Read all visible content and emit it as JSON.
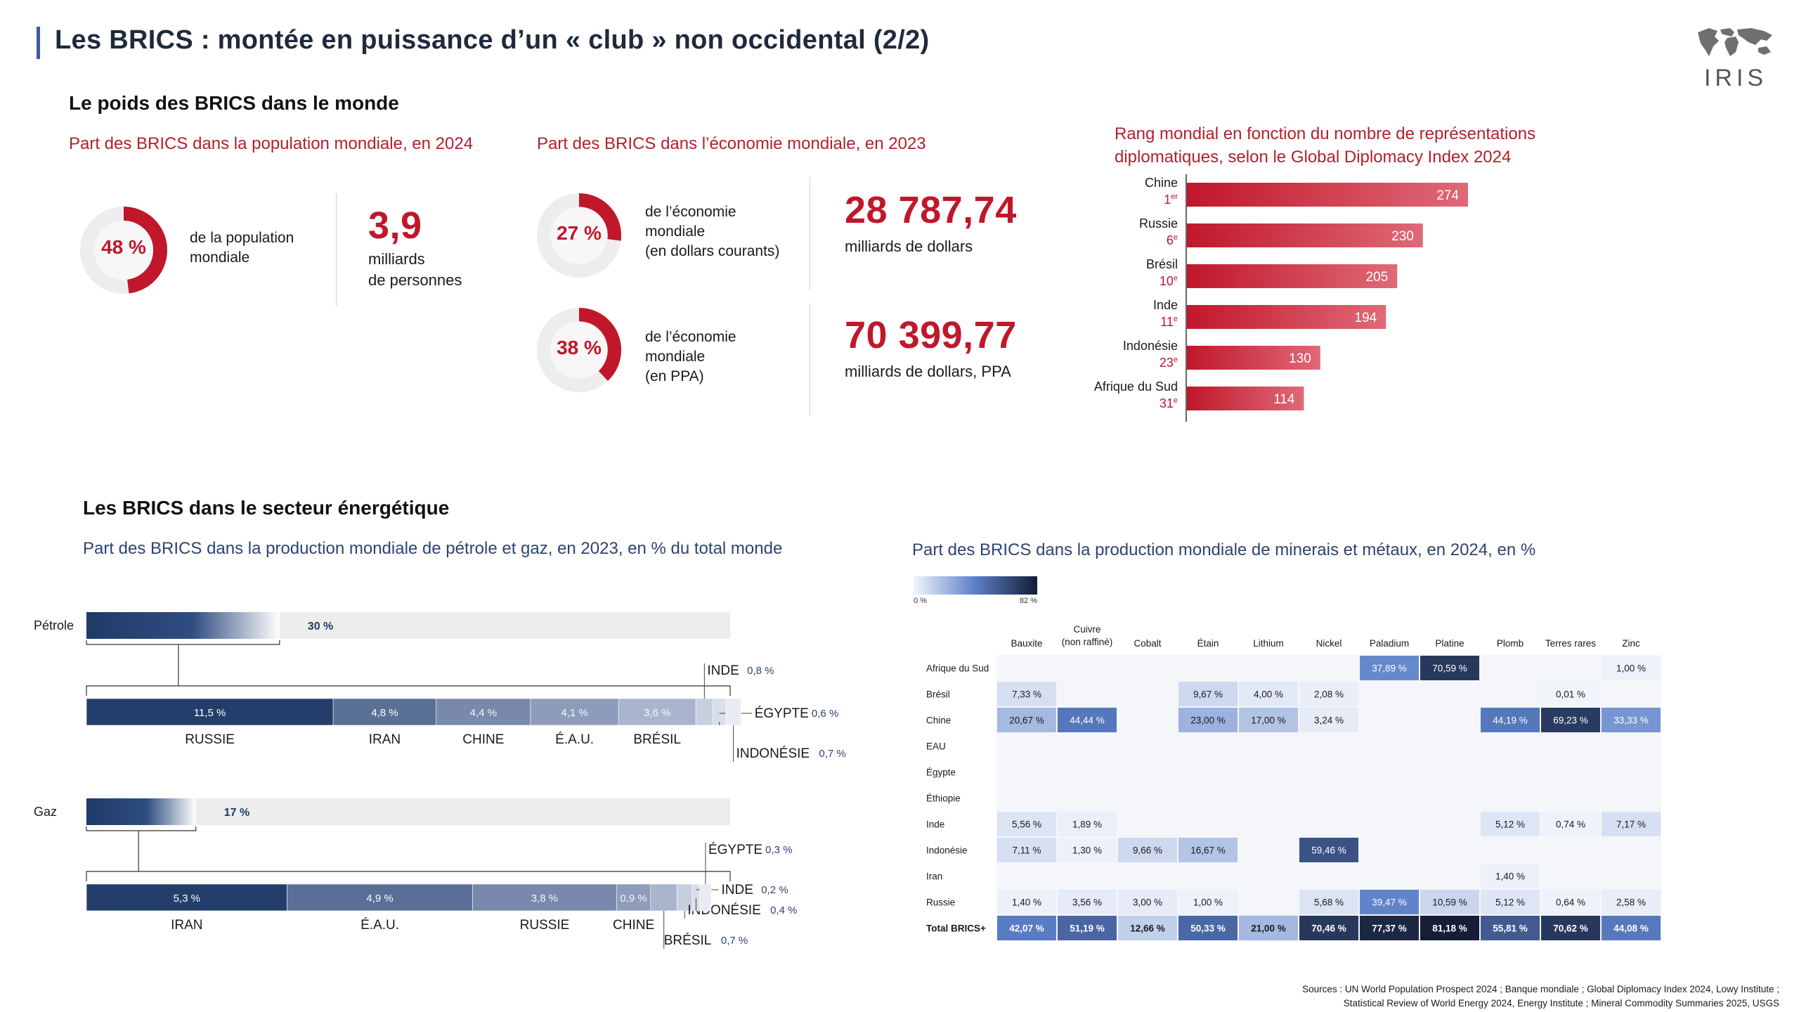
{
  "header": {
    "title": "Les BRICS : montée en puissance d’un « club » non occidental (2/2)",
    "logo_text": "IRIS"
  },
  "section1": {
    "title": "Le poids des BRICS dans le monde",
    "population": {
      "subtitle": "Part des BRICS dans la population mondiale, en 2024",
      "percent_label": "48 %",
      "percent": 48,
      "desc_line1": "de la population",
      "desc_line2": "mondiale",
      "big_value": "3,9",
      "caption_line1": "milliards",
      "caption_line2": "de personnes"
    },
    "economy": {
      "subtitle": "Part des BRICS dans l’économie mondiale, en 2023",
      "current": {
        "percent_label": "27 %",
        "percent": 27,
        "desc_line1": "de l’économie",
        "desc_line2": "mondiale",
        "desc_line3": "(en dollars courants)",
        "big_value": "28 787,74",
        "caption": "milliards de dollars"
      },
      "ppp": {
        "percent_label": "38 %",
        "percent": 38,
        "desc_line1": "de l’économie",
        "desc_line2": "mondiale",
        "desc_line3": "(en PPA)",
        "big_value": "70 399,77",
        "caption": "milliards de dollars, PPA"
      }
    },
    "diplomacy": {
      "subtitle_line1": "Rang mondial en fonction du nombre de représentations",
      "subtitle_line2": "diplomatiques, selon le Global Diplomacy Index 2024"
    }
  },
  "section2": {
    "title": "Les BRICS dans le secteur énergétique",
    "oil_gas_subtitle": "Part des BRICS dans la production mondiale de pétrole et gaz, en 2023, en % du total monde",
    "minerals_subtitle": "Part des BRICS dans la production mondiale de minerais et métaux, en 2024, en %",
    "legend_min": "0 %",
    "legend_max": "82 %"
  },
  "sources": {
    "line1": "Sources : UN World Population Prospect 2024 ; Banque mondiale ; Global Diplomacy Index 2024, Lowy Institute ;",
    "line2": "Statistical Review of World Energy 2024, Energy Institute ; Mineral Commodity Summaries 2025, USGS"
  },
  "colors": {
    "red": "#c0172b",
    "navy": "#1f3a68",
    "title_bar": "#3b5aa8"
  },
  "chart_data": [
    {
      "type": "bar",
      "orientation": "horizontal",
      "categories": [
        "Chine",
        "Russie",
        "Brésil",
        "Inde",
        "Indonésie",
        "Afrique du Sud"
      ],
      "rank_labels": [
        "1er",
        "6e",
        "10e",
        "11e",
        "23e",
        "31e"
      ],
      "values": [
        274,
        230,
        205,
        194,
        130,
        114
      ]
    },
    {
      "type": "bar",
      "stacked": true,
      "id": "petrole",
      "label": "Pétrole",
      "total": 30,
      "total_label": "30 %",
      "segments": [
        {
          "name": "RUSSIE",
          "value": 11.5,
          "label": "11,5 %"
        },
        {
          "name": "IRAN",
          "value": 4.8,
          "label": "4,8 %"
        },
        {
          "name": "CHINE",
          "value": 4.4,
          "label": "4,4 %"
        },
        {
          "name": "É.A.U.",
          "value": 4.1,
          "label": "4,1 %"
        },
        {
          "name": "BRÉSIL",
          "value": 3.6,
          "label": "3,6 %"
        },
        {
          "name": "INDE",
          "value": 0.8,
          "label": "0,8 %"
        },
        {
          "name": "ÉGYPTE",
          "value": 0.6,
          "label": "0,6 %"
        },
        {
          "name": "INDONÉSIE",
          "value": 0.7,
          "label": "0,7 %"
        }
      ]
    },
    {
      "type": "bar",
      "stacked": true,
      "id": "gaz",
      "label": "Gaz",
      "total": 17,
      "total_label": "17 %",
      "segments": [
        {
          "name": "IRAN",
          "value": 5.3,
          "label": "5,3 %"
        },
        {
          "name": "É.A.U.",
          "value": 4.9,
          "label": "4,9 %"
        },
        {
          "name": "RUSSIE",
          "value": 3.8,
          "label": "3,8 %"
        },
        {
          "name": "CHINE",
          "value": 0.9,
          "label": "0,9 %"
        },
        {
          "name": "BRÉSIL",
          "value": 0.7,
          "label": "0,7 %"
        },
        {
          "name": "INDONÉSIE",
          "value": 0.4,
          "label": "0,4 %"
        },
        {
          "name": "INDE",
          "value": 0.2,
          "label": "0,2 %"
        },
        {
          "name": "ÉGYPTE",
          "value": 0.3,
          "label": "0,3 %"
        }
      ]
    },
    {
      "type": "heatmap",
      "scale": [
        0,
        82
      ],
      "columns": [
        "Bauxite",
        "Cuivre (non raffiné)",
        "Cobalt",
        "Étain",
        "Lithium",
        "Nickel",
        "Paladium",
        "Platine",
        "Plomb",
        "Terres rares",
        "Zinc"
      ],
      "rows": [
        {
          "name": "Afrique du Sud",
          "values": [
            null,
            null,
            null,
            null,
            null,
            null,
            37.89,
            70.59,
            null,
            null,
            1.0
          ],
          "labels": [
            "",
            "",
            "",
            "",
            "",
            "",
            "37,89 %",
            "70,59 %",
            "",
            "",
            "1,00 %"
          ]
        },
        {
          "name": "Brésil",
          "values": [
            7.33,
            null,
            null,
            9.67,
            4.0,
            2.08,
            null,
            null,
            null,
            0.01,
            null
          ],
          "labels": [
            "7,33 %",
            "",
            "",
            "9,67 %",
            "4,00 %",
            "2,08 %",
            "",
            "",
            "",
            "0,01 %",
            ""
          ]
        },
        {
          "name": "Chine",
          "values": [
            20.67,
            44.44,
            null,
            23.0,
            17.0,
            3.24,
            null,
            null,
            44.19,
            69.23,
            33.33
          ],
          "labels": [
            "20,67 %",
            "44,44 %",
            "",
            "23,00 %",
            "17,00 %",
            "3,24 %",
            "",
            "",
            "44,19 %",
            "69,23 %",
            "33,33 %"
          ]
        },
        {
          "name": "EAU",
          "values": [
            null,
            null,
            null,
            null,
            null,
            null,
            null,
            null,
            null,
            null,
            null
          ],
          "labels": [
            "",
            "",
            "",
            "",
            "",
            "",
            "",
            "",
            "",
            "",
            ""
          ]
        },
        {
          "name": "Égypte",
          "values": [
            null,
            null,
            null,
            null,
            null,
            null,
            null,
            null,
            null,
            null,
            null
          ],
          "labels": [
            "",
            "",
            "",
            "",
            "",
            "",
            "",
            "",
            "",
            "",
            ""
          ]
        },
        {
          "name": "Éthiopie",
          "values": [
            null,
            null,
            null,
            null,
            null,
            null,
            null,
            null,
            null,
            null,
            null
          ],
          "labels": [
            "",
            "",
            "",
            "",
            "",
            "",
            "",
            "",
            "",
            "",
            ""
          ]
        },
        {
          "name": "Inde",
          "values": [
            5.56,
            1.89,
            null,
            null,
            null,
            null,
            null,
            null,
            5.12,
            0.74,
            7.17
          ],
          "labels": [
            "5,56 %",
            "1,89 %",
            "",
            "",
            "",
            "",
            "",
            "",
            "5,12 %",
            "0,74 %",
            "7,17 %"
          ]
        },
        {
          "name": "Indonésie",
          "values": [
            7.11,
            1.3,
            9.66,
            16.67,
            null,
            59.46,
            null,
            null,
            null,
            null,
            null
          ],
          "labels": [
            "7,11 %",
            "1,30 %",
            "9,66 %",
            "16,67 %",
            "",
            "59,46 %",
            "",
            "",
            "",
            "",
            ""
          ]
        },
        {
          "name": "Iran",
          "values": [
            null,
            null,
            null,
            null,
            null,
            null,
            null,
            null,
            1.4,
            null,
            null
          ],
          "labels": [
            "",
            "",
            "",
            "",
            "",
            "",
            "",
            "",
            "1,40 %",
            "",
            ""
          ]
        },
        {
          "name": "Russie",
          "values": [
            1.4,
            3.56,
            3.0,
            1.0,
            null,
            5.68,
            39.47,
            10.59,
            5.12,
            0.64,
            2.58
          ],
          "labels": [
            "1,40 %",
            "3,56 %",
            "3,00 %",
            "1,00 %",
            "",
            "5,68 %",
            "39,47 %",
            "10,59 %",
            "5,12 %",
            "0,64 %",
            "2,58 %"
          ]
        },
        {
          "name": "Total BRICS+",
          "total": true,
          "values": [
            42.07,
            51.19,
            12.66,
            50.33,
            21.0,
            70.46,
            77.37,
            81.18,
            55.81,
            70.62,
            44.08
          ],
          "labels": [
            "42,07 %",
            "51,19 %",
            "12,66 %",
            "50,33 %",
            "21,00 %",
            "70,46 %",
            "77,37 %",
            "81,18 %",
            "55,81 %",
            "70,62 %",
            "44,08 %"
          ]
        }
      ]
    }
  ]
}
